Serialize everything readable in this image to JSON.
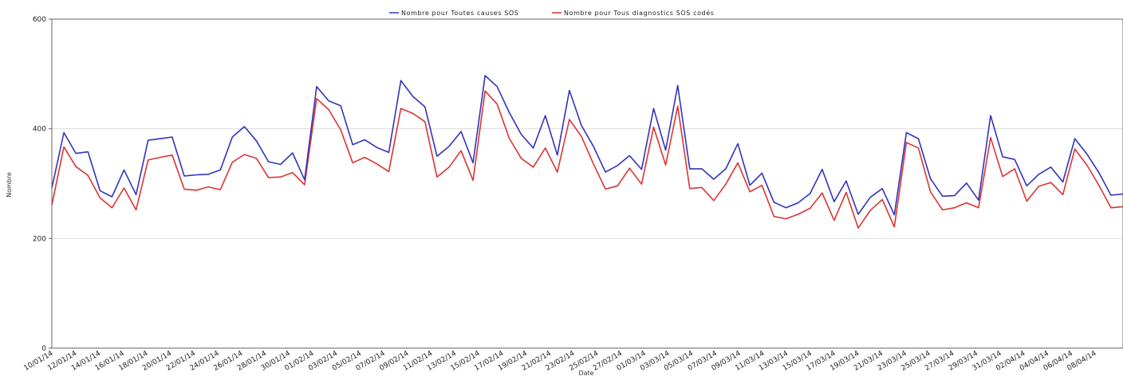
{
  "chart_data": {
    "type": "line",
    "xlabel": "Date",
    "ylabel": "Nombre",
    "ylim": [
      0,
      600
    ],
    "yticks": [
      0,
      200,
      400,
      600
    ],
    "grid": "horizontal",
    "legend_position": "top-center",
    "x_tick_labels": [
      "10/01/14",
      "12/01/14",
      "14/01/14",
      "16/01/14",
      "18/01/14",
      "20/01/14",
      "22/01/14",
      "24/01/14",
      "26/01/14",
      "28/01/14",
      "30/01/14",
      "01/02/14",
      "03/02/14",
      "05/02/14",
      "07/02/14",
      "09/02/14",
      "11/02/14",
      "13/02/14",
      "15/02/14",
      "17/02/14",
      "19/02/14",
      "21/02/14",
      "23/02/14",
      "25/02/14",
      "27/02/14",
      "01/03/14",
      "03/03/14",
      "05/03/14",
      "07/03/14",
      "09/03/14",
      "11/03/14",
      "13/03/14",
      "15/03/14",
      "17/03/14",
      "19/03/14",
      "21/03/14",
      "23/03/14",
      "25/03/14",
      "27/03/14",
      "29/03/14",
      "31/03/14",
      "02/04/14",
      "04/04/14",
      "06/04/14",
      "08/04/14"
    ],
    "series": [
      {
        "name": "Nombre pour Toutes causes SOS",
        "color": "#3333bb",
        "values": [
          292,
          393,
          355,
          358,
          287,
          276,
          325,
          280,
          379,
          382,
          385,
          314,
          316,
          317,
          325,
          385,
          404,
          378,
          340,
          335,
          356,
          307,
          477,
          451,
          442,
          371,
          380,
          366,
          357,
          488,
          459,
          440,
          350,
          368,
          395,
          338,
          497,
          477,
          430,
          390,
          365,
          424,
          352,
          470,
          406,
          368,
          321,
          333,
          351,
          326,
          437,
          361,
          479,
          327,
          327,
          308,
          327,
          373,
          297,
          319,
          266,
          256,
          265,
          282,
          326,
          267,
          305,
          244,
          275,
          291,
          243,
          393,
          382,
          309,
          277,
          278,
          301,
          270,
          424,
          349,
          344,
          296,
          317,
          330,
          303,
          382,
          354,
          320,
          279,
          281
        ]
      },
      {
        "name": "Nombre pour Tous diagnostics SOS codés",
        "color": "#dd3333",
        "values": [
          261,
          367,
          331,
          315,
          274,
          256,
          292,
          252,
          343,
          348,
          352,
          290,
          288,
          294,
          289,
          339,
          353,
          346,
          311,
          312,
          320,
          298,
          455,
          435,
          398,
          338,
          348,
          336,
          322,
          437,
          428,
          413,
          312,
          330,
          360,
          306,
          469,
          445,
          383,
          346,
          330,
          365,
          321,
          417,
          386,
          336,
          290,
          296,
          328,
          299,
          403,
          334,
          441,
          291,
          293,
          269,
          299,
          338,
          285,
          297,
          240,
          236,
          244,
          255,
          283,
          233,
          284,
          219,
          251,
          271,
          221,
          375,
          365,
          285,
          252,
          256,
          265,
          256,
          384,
          313,
          327,
          268,
          295,
          302,
          280,
          363,
          334,
          297,
          256,
          258
        ]
      }
    ]
  }
}
